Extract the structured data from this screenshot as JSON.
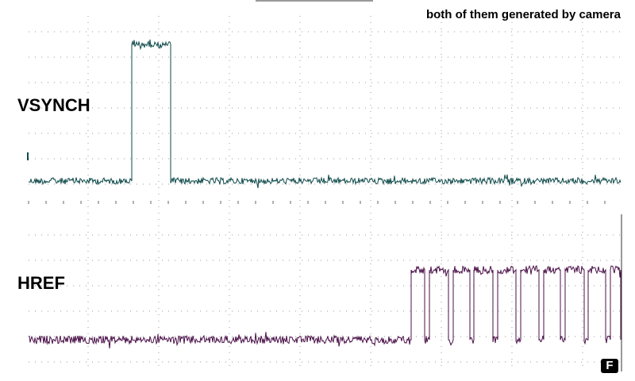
{
  "chart_data": {
    "type": "line",
    "title": "",
    "annotation": "both of them generated by camera",
    "xlabel": "",
    "ylabel": "",
    "grid": true,
    "colors": {
      "VSYNCH": "#0f4a4a",
      "HREF": "#4a1048",
      "grid": "#9a9a9a"
    },
    "series": [
      {
        "name": "VSYNCH",
        "color": "#0f4a4a",
        "levels": {
          "low": 0,
          "high": 1
        },
        "segments": [
          {
            "from": 0,
            "to": 0.173,
            "level": 0
          },
          {
            "from": 0.173,
            "to": 0.239,
            "level": 1
          },
          {
            "from": 0.239,
            "to": 1,
            "level": 0
          }
        ]
      },
      {
        "name": "HREF",
        "color": "#4a1048",
        "levels": {
          "low": 0,
          "high": 1
        },
        "first_rise": 0.646,
        "pulses": [
          [
            0.646,
            0.668
          ],
          [
            0.676,
            0.708
          ],
          [
            0.716,
            0.744
          ],
          [
            0.752,
            0.784
          ],
          [
            0.792,
            0.822
          ],
          [
            0.83,
            0.861
          ],
          [
            0.869,
            0.898
          ],
          [
            0.906,
            0.937
          ],
          [
            0.945,
            0.974
          ],
          [
            0.982,
            1.0
          ]
        ]
      }
    ],
    "icon": "f-badge-icon",
    "badge_text": "F"
  }
}
